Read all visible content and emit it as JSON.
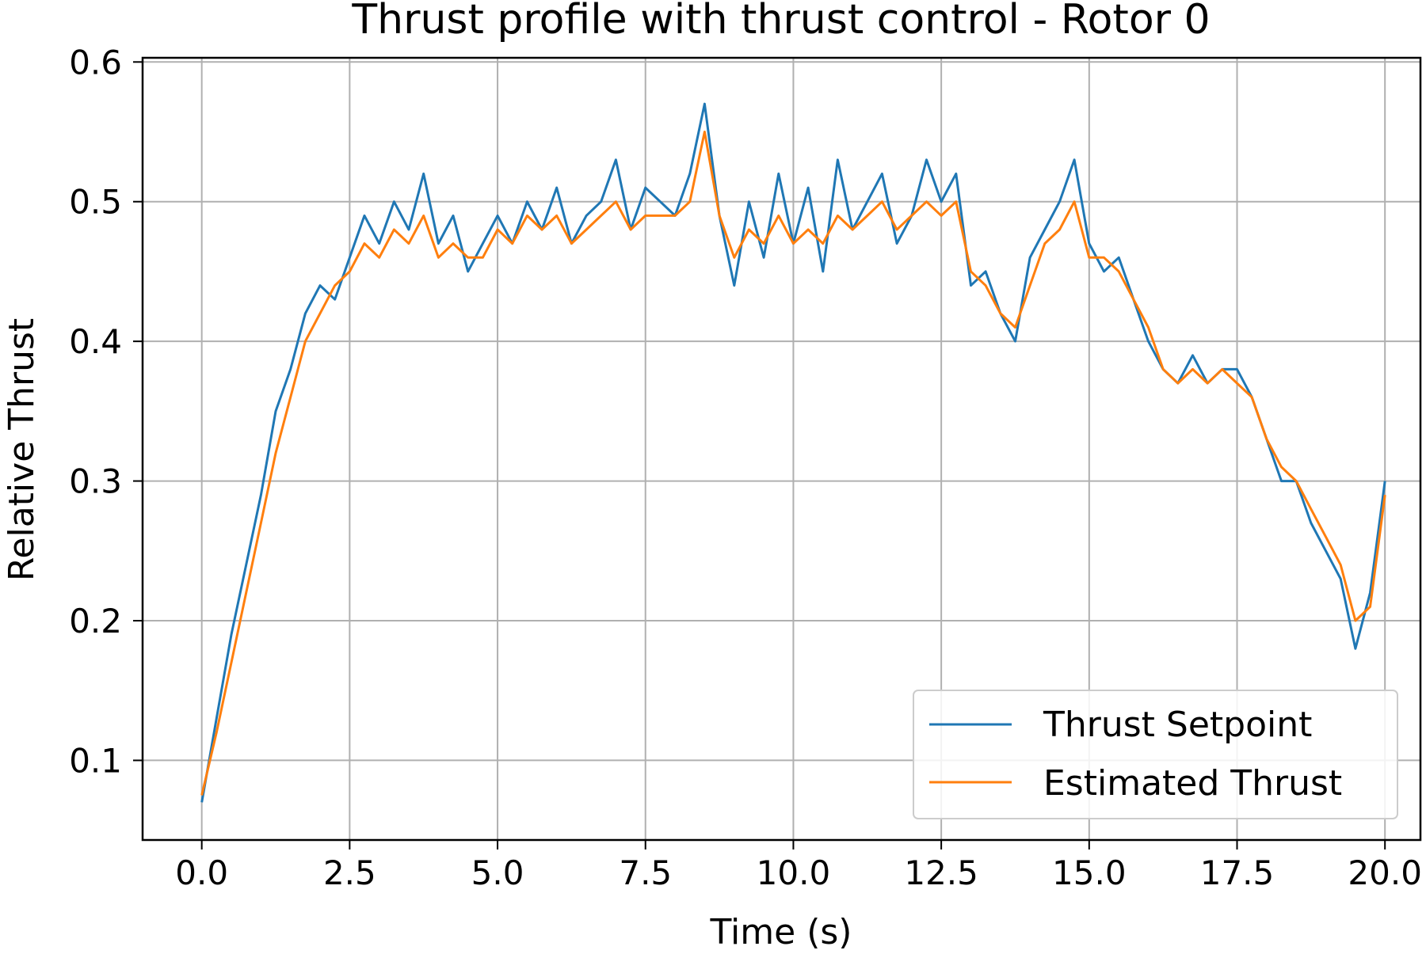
{
  "chart_data": {
    "type": "line",
    "title": "Thrust profile with thrust control - Rotor 0",
    "xlabel": "Time (s)",
    "ylabel": "Relative Thrust",
    "xlim": [
      -1.0,
      20.6
    ],
    "ylim": [
      0.043,
      0.603
    ],
    "xticks": [
      0.0,
      2.5,
      5.0,
      7.5,
      10.0,
      12.5,
      15.0,
      17.5,
      20.0
    ],
    "xtick_labels": [
      "0.0",
      "2.5",
      "5.0",
      "7.5",
      "10.0",
      "12.5",
      "15.0",
      "17.5",
      "20.0"
    ],
    "yticks": [
      0.1,
      0.2,
      0.3,
      0.4,
      0.5,
      0.6
    ],
    "ytick_labels": [
      "0.1",
      "0.2",
      "0.3",
      "0.4",
      "0.5",
      "0.6"
    ],
    "grid": true,
    "legend_position": "lower-right",
    "series": [
      {
        "name": "Thrust Setpoint",
        "color": "#1f77b4",
        "x": [
          0.0,
          0.25,
          0.5,
          0.75,
          1.0,
          1.25,
          1.5,
          1.75,
          2.0,
          2.25,
          2.5,
          2.75,
          3.0,
          3.25,
          3.5,
          3.75,
          4.0,
          4.25,
          4.5,
          4.75,
          5.0,
          5.25,
          5.5,
          5.75,
          6.0,
          6.25,
          6.5,
          6.75,
          7.0,
          7.25,
          7.5,
          7.75,
          8.0,
          8.25,
          8.5,
          8.75,
          9.0,
          9.25,
          9.5,
          9.75,
          10.0,
          10.25,
          10.5,
          10.75,
          11.0,
          11.25,
          11.5,
          11.75,
          12.0,
          12.25,
          12.5,
          12.75,
          13.0,
          13.25,
          13.5,
          13.75,
          14.0,
          14.25,
          14.5,
          14.75,
          15.0,
          15.25,
          15.5,
          15.75,
          16.0,
          16.25,
          16.5,
          16.75,
          17.0,
          17.25,
          17.5,
          17.75,
          18.0,
          18.25,
          18.5,
          18.75,
          19.0,
          19.25,
          19.5,
          19.75,
          20.0
        ],
        "y": [
          0.07,
          0.13,
          0.19,
          0.24,
          0.29,
          0.35,
          0.38,
          0.42,
          0.44,
          0.43,
          0.46,
          0.49,
          0.47,
          0.5,
          0.48,
          0.52,
          0.47,
          0.49,
          0.45,
          0.47,
          0.49,
          0.47,
          0.5,
          0.48,
          0.51,
          0.47,
          0.49,
          0.5,
          0.53,
          0.48,
          0.51,
          0.5,
          0.49,
          0.52,
          0.57,
          0.49,
          0.44,
          0.5,
          0.46,
          0.52,
          0.47,
          0.51,
          0.45,
          0.53,
          0.48,
          0.5,
          0.52,
          0.47,
          0.49,
          0.53,
          0.5,
          0.52,
          0.44,
          0.45,
          0.42,
          0.4,
          0.46,
          0.48,
          0.5,
          0.53,
          0.47,
          0.45,
          0.46,
          0.43,
          0.4,
          0.38,
          0.37,
          0.39,
          0.37,
          0.38,
          0.38,
          0.36,
          0.33,
          0.3,
          0.3,
          0.27,
          0.25,
          0.23,
          0.18,
          0.22,
          0.3
        ]
      },
      {
        "name": "Estimated Thrust",
        "color": "#ff7f0e",
        "x": [
          0.0,
          0.25,
          0.5,
          0.75,
          1.0,
          1.25,
          1.5,
          1.75,
          2.0,
          2.25,
          2.5,
          2.75,
          3.0,
          3.25,
          3.5,
          3.75,
          4.0,
          4.25,
          4.5,
          4.75,
          5.0,
          5.25,
          5.5,
          5.75,
          6.0,
          6.25,
          6.5,
          6.75,
          7.0,
          7.25,
          7.5,
          7.75,
          8.0,
          8.25,
          8.5,
          8.75,
          9.0,
          9.25,
          9.5,
          9.75,
          10.0,
          10.25,
          10.5,
          10.75,
          11.0,
          11.25,
          11.5,
          11.75,
          12.0,
          12.25,
          12.5,
          12.75,
          13.0,
          13.25,
          13.5,
          13.75,
          14.0,
          14.25,
          14.5,
          14.75,
          15.0,
          15.25,
          15.5,
          15.75,
          16.0,
          16.25,
          16.5,
          16.75,
          17.0,
          17.25,
          17.5,
          17.75,
          18.0,
          18.25,
          18.5,
          18.75,
          19.0,
          19.25,
          19.5,
          19.75,
          20.0
        ],
        "y": [
          0.075,
          0.12,
          0.17,
          0.22,
          0.27,
          0.32,
          0.36,
          0.4,
          0.42,
          0.44,
          0.45,
          0.47,
          0.46,
          0.48,
          0.47,
          0.49,
          0.46,
          0.47,
          0.46,
          0.46,
          0.48,
          0.47,
          0.49,
          0.48,
          0.49,
          0.47,
          0.48,
          0.49,
          0.5,
          0.48,
          0.49,
          0.49,
          0.49,
          0.5,
          0.55,
          0.49,
          0.46,
          0.48,
          0.47,
          0.49,
          0.47,
          0.48,
          0.47,
          0.49,
          0.48,
          0.49,
          0.5,
          0.48,
          0.49,
          0.5,
          0.49,
          0.5,
          0.45,
          0.44,
          0.42,
          0.41,
          0.44,
          0.47,
          0.48,
          0.5,
          0.46,
          0.46,
          0.45,
          0.43,
          0.41,
          0.38,
          0.37,
          0.38,
          0.37,
          0.38,
          0.37,
          0.36,
          0.33,
          0.31,
          0.3,
          0.28,
          0.26,
          0.24,
          0.2,
          0.21,
          0.29
        ]
      }
    ]
  }
}
